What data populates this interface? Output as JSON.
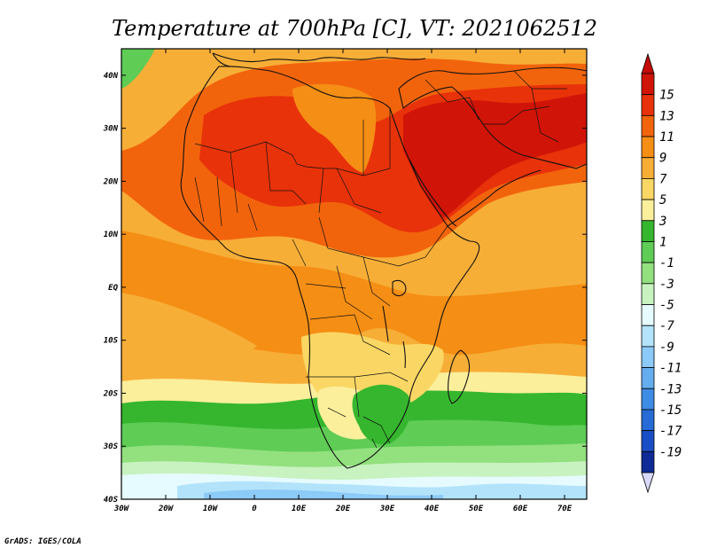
{
  "title": "Temperature at 700hPa [C], VT: 2021062512",
  "footer": "GrADS: IGES/COLA",
  "chart_data": {
    "type": "heatmap",
    "variable": "Temperature at 700hPa",
    "units": "C",
    "valid_time": "2021062512",
    "x_ticks": [
      "30W",
      "20W",
      "10W",
      "0",
      "10E",
      "20E",
      "30E",
      "40E",
      "50E",
      "60E",
      "70E"
    ],
    "y_ticks": [
      "40N",
      "30N",
      "20N",
      "10N",
      "EQ",
      "10S",
      "20S",
      "30S",
      "40S"
    ],
    "lon_range": [
      -30,
      75
    ],
    "lat_range": [
      -40,
      45
    ],
    "colorbar": {
      "labels": [
        "15",
        "13",
        "11",
        "9",
        "7",
        "5",
        "3",
        "1",
        "-1",
        "-3",
        "-5",
        "-7",
        "-9",
        "-11",
        "-13",
        "-15",
        "-17",
        "-19"
      ],
      "colors": [
        "#d11408",
        "#e8320a",
        "#f2640c",
        "#f58e14",
        "#f7ae37",
        "#fad764",
        "#fcef9c",
        "#35b62e",
        "#5fcc55",
        "#92e07e",
        "#c8f2c0",
        "#e6fbff",
        "#b3e3fb",
        "#8ccaf7",
        "#64adee",
        "#3f8ce4",
        "#266bd6",
        "#1a4ec4",
        "#0e2a96"
      ],
      "top_color": "#c40a06",
      "bottom_color": "#d8d8f8"
    }
  }
}
